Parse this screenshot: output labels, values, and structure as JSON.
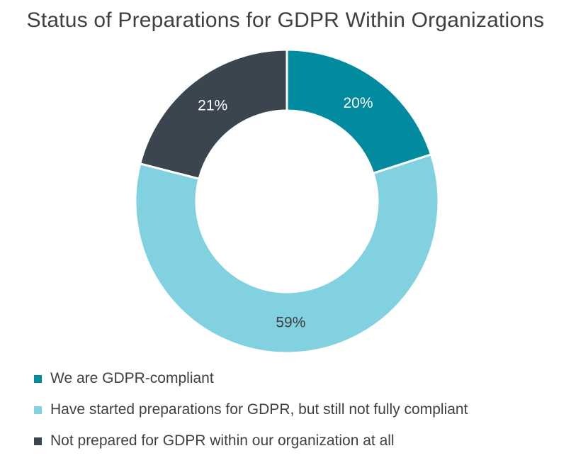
{
  "chart_data": {
    "type": "pie",
    "title": "Status of Preparations for GDPR Within Organizations",
    "donut": true,
    "slices": [
      {
        "label": "We are GDPR-compliant",
        "value": 20,
        "display": "20%",
        "color": "#028a9f",
        "label_color": "#ffffff"
      },
      {
        "label": "Have started preparations for GDPR, but still not fully compliant",
        "value": 59,
        "display": "59%",
        "color": "#81d1e1",
        "label_color": "#404040"
      },
      {
        "label": "Not prepared for GDPR within our organization at all",
        "value": 21,
        "display": "21%",
        "color": "#3b4550",
        "label_color": "#ffffff"
      }
    ],
    "legend_position": "bottom-left"
  }
}
